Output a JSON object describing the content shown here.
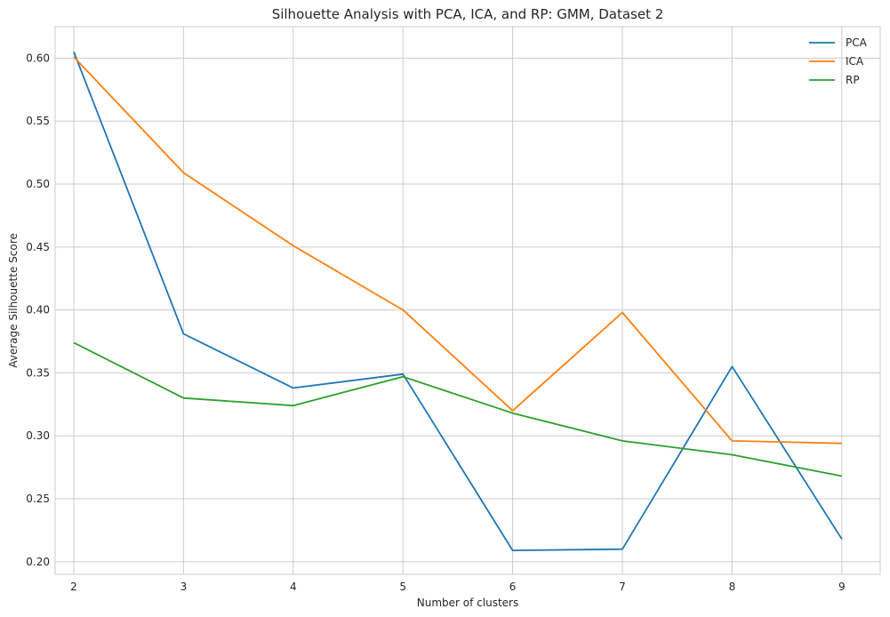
{
  "chart_data": {
    "type": "line",
    "title": "Silhouette Analysis with PCA, ICA, and RP:  GMM, Dataset 2",
    "xlabel": "Number of clusters",
    "ylabel": "Average Silhouette Score",
    "x": [
      2,
      3,
      4,
      5,
      6,
      7,
      8,
      9
    ],
    "xlim": [
      1.83,
      9.35
    ],
    "ylim": [
      0.19,
      0.625
    ],
    "xticks": [
      2,
      3,
      4,
      5,
      6,
      7,
      8,
      9
    ],
    "yticks": [
      0.2,
      0.25,
      0.3,
      0.35,
      0.4,
      0.45,
      0.5,
      0.55,
      0.6
    ],
    "grid": true,
    "legend_position": "top-right",
    "series": [
      {
        "name": "PCA",
        "color": "#1f77b4",
        "values": [
          0.605,
          0.381,
          0.338,
          0.349,
          0.209,
          0.21,
          0.355,
          0.218
        ]
      },
      {
        "name": "ICA",
        "color": "#ff7f0e",
        "values": [
          0.601,
          0.509,
          0.451,
          0.4,
          0.32,
          0.398,
          0.296,
          0.294
        ]
      },
      {
        "name": "RP",
        "color": "#2ca02c",
        "values": [
          0.374,
          0.33,
          0.324,
          0.347,
          0.318,
          0.296,
          0.285,
          0.268
        ]
      }
    ]
  }
}
